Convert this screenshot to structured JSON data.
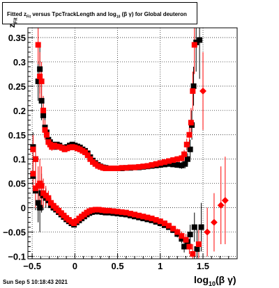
{
  "chart_data": {
    "type": "scatter",
    "title_prefix": "Fitted  z",
    "title_sub": "Fit",
    "title_mid": "  versus TpcTrackLength and log",
    "title_sub2": "10",
    "title_suffix": "(β γ) for Global deuteron",
    "xlabel_main": "log",
    "xlabel_sub": "10",
    "xlabel_tail": "(β γ)",
    "ylabel_main": "z",
    "ylabel_sub": "Fit",
    "footer": "Sun Sep  5 10:18:43 2021",
    "xlim": [
      -0.55,
      1.9
    ],
    "ylim": [
      -0.105,
      0.37
    ],
    "x_ticks": [
      -0.5,
      0,
      0.5,
      1,
      1.5
    ],
    "x_tick_labels": [
      "−0.5",
      "0",
      "0.5",
      "1",
      "1.5"
    ],
    "y_ticks": [
      -0.1,
      -0.05,
      0,
      0.05,
      0.1,
      0.15,
      0.2,
      0.25,
      0.3,
      0.35
    ],
    "y_tick_labels": [
      "−0.1",
      "−0.05",
      "0",
      "0.05",
      "0.1",
      "0.15",
      "0.2",
      "0.25",
      "0.3",
      "0.35"
    ],
    "grid": true,
    "colors": {
      "black_series": "#000000",
      "red_series": "#ff0000"
    },
    "series": [
      {
        "marker": "square",
        "color": "#000000",
        "points": [
          [
            -0.49,
            0.125,
            0.03
          ],
          [
            -0.46,
            0.1,
            0.03
          ],
          [
            -0.43,
            0.26,
            0.04
          ],
          [
            -0.41,
            0.285,
            0.05
          ],
          [
            -0.39,
            0.22,
            0.04
          ],
          [
            -0.37,
            0.19,
            0.03
          ],
          [
            -0.35,
            0.165,
            0.02
          ],
          [
            -0.33,
            0.155,
            0.015
          ],
          [
            -0.31,
            0.14,
            0.01
          ],
          [
            -0.29,
            0.135,
            0.01
          ],
          [
            -0.27,
            0.13,
            0.008
          ],
          [
            -0.24,
            0.125,
            0.006
          ],
          [
            -0.21,
            0.13,
            0.005
          ],
          [
            -0.18,
            0.128,
            0.005
          ],
          [
            -0.15,
            0.124,
            0.004
          ],
          [
            -0.12,
            0.122,
            0.004
          ],
          [
            -0.09,
            0.125,
            0.004
          ],
          [
            -0.06,
            0.128,
            0.004
          ],
          [
            -0.03,
            0.13,
            0.004
          ],
          [
            0.0,
            0.128,
            0.004
          ],
          [
            0.03,
            0.126,
            0.003
          ],
          [
            0.06,
            0.124,
            0.003
          ],
          [
            0.09,
            0.12,
            0.003
          ],
          [
            0.12,
            0.117,
            0.003
          ],
          [
            0.15,
            0.112,
            0.003
          ],
          [
            0.18,
            0.104,
            0.003
          ],
          [
            0.21,
            0.097,
            0.003
          ],
          [
            0.24,
            0.092,
            0.003
          ],
          [
            0.27,
            0.088,
            0.003
          ],
          [
            0.3,
            0.085,
            0.003
          ],
          [
            0.33,
            0.083,
            0.003
          ],
          [
            0.36,
            0.082,
            0.003
          ],
          [
            0.4,
            0.081,
            0.003
          ],
          [
            0.45,
            0.081,
            0.003
          ],
          [
            0.5,
            0.081,
            0.003
          ],
          [
            0.55,
            0.081,
            0.003
          ],
          [
            0.6,
            0.082,
            0.003
          ],
          [
            0.65,
            0.082,
            0.003
          ],
          [
            0.7,
            0.083,
            0.003
          ],
          [
            0.75,
            0.083,
            0.003
          ],
          [
            0.8,
            0.084,
            0.003
          ],
          [
            0.85,
            0.085,
            0.003
          ],
          [
            0.9,
            0.086,
            0.004
          ],
          [
            0.95,
            0.087,
            0.004
          ],
          [
            1.0,
            0.088,
            0.004
          ],
          [
            1.05,
            0.089,
            0.004
          ],
          [
            1.1,
            0.09,
            0.004
          ],
          [
            1.15,
            0.089,
            0.005
          ],
          [
            1.2,
            0.088,
            0.006
          ],
          [
            1.25,
            0.087,
            0.007
          ],
          [
            1.29,
            0.09,
            0.009
          ],
          [
            1.32,
            0.1,
            0.012
          ],
          [
            1.35,
            0.12,
            0.02
          ],
          [
            1.37,
            0.17,
            0.03
          ],
          [
            1.39,
            0.25,
            0.04
          ],
          [
            1.42,
            0.34,
            0.06
          ],
          [
            1.46,
            0.345,
            0.08
          ],
          [
            -0.49,
            0.065,
            0.03
          ],
          [
            -0.46,
            0.035,
            0.04
          ],
          [
            -0.43,
            0.01,
            0.04
          ],
          [
            -0.41,
            0.0,
            0.05
          ],
          [
            -0.39,
            0.03,
            0.04
          ],
          [
            -0.37,
            0.025,
            0.03
          ],
          [
            -0.34,
            0.02,
            0.02
          ],
          [
            -0.31,
            0.015,
            0.015
          ],
          [
            -0.28,
            0.005,
            0.01
          ],
          [
            -0.25,
            0.0,
            0.008
          ],
          [
            -0.22,
            -0.004,
            0.006
          ],
          [
            -0.19,
            -0.009,
            0.005
          ],
          [
            -0.16,
            -0.014,
            0.005
          ],
          [
            -0.13,
            -0.019,
            0.004
          ],
          [
            -0.1,
            -0.024,
            0.004
          ],
          [
            -0.07,
            -0.028,
            0.004
          ],
          [
            -0.04,
            -0.032,
            0.004
          ],
          [
            -0.01,
            -0.035,
            0.004
          ],
          [
            0.02,
            -0.03,
            0.003
          ],
          [
            0.05,
            -0.026,
            0.003
          ],
          [
            0.08,
            -0.022,
            0.003
          ],
          [
            0.11,
            -0.018,
            0.003
          ],
          [
            0.14,
            -0.014,
            0.003
          ],
          [
            0.17,
            -0.011,
            0.003
          ],
          [
            0.2,
            -0.009,
            0.003
          ],
          [
            0.24,
            -0.008,
            0.003
          ],
          [
            0.28,
            -0.008,
            0.003
          ],
          [
            0.32,
            -0.009,
            0.003
          ],
          [
            0.36,
            -0.01,
            0.003
          ],
          [
            0.4,
            -0.01,
            0.003
          ],
          [
            0.45,
            -0.011,
            0.003
          ],
          [
            0.5,
            -0.012,
            0.003
          ],
          [
            0.55,
            -0.013,
            0.003
          ],
          [
            0.6,
            -0.014,
            0.003
          ],
          [
            0.65,
            -0.016,
            0.003
          ],
          [
            0.7,
            -0.018,
            0.003
          ],
          [
            0.75,
            -0.02,
            0.003
          ],
          [
            0.8,
            -0.022,
            0.003
          ],
          [
            0.85,
            -0.024,
            0.004
          ],
          [
            0.9,
            -0.026,
            0.004
          ],
          [
            0.95,
            -0.029,
            0.004
          ],
          [
            1.0,
            -0.032,
            0.004
          ],
          [
            1.05,
            -0.036,
            0.005
          ],
          [
            1.1,
            -0.04,
            0.005
          ],
          [
            1.15,
            -0.046,
            0.006
          ],
          [
            1.2,
            -0.054,
            0.007
          ],
          [
            1.25,
            -0.064,
            0.009
          ],
          [
            1.28,
            -0.08,
            0.012
          ],
          [
            1.32,
            -0.07,
            0.015
          ],
          [
            1.35,
            -0.055,
            0.02
          ],
          [
            1.4,
            -0.04,
            0.03
          ],
          [
            1.43,
            -0.085,
            0.04
          ],
          [
            1.48,
            -0.04,
            0.05
          ]
        ]
      },
      {
        "marker": "square",
        "color": "#ff0000",
        "points": [
          [
            -0.49,
            0.12,
            0.03
          ],
          [
            -0.46,
            0.1,
            0.03
          ],
          [
            -0.43,
            0.335,
            0.04
          ],
          [
            -0.41,
            0.27,
            0.05
          ],
          [
            -0.39,
            0.26,
            0.04
          ],
          [
            -0.37,
            0.2,
            0.03
          ],
          [
            -0.35,
            0.16,
            0.02
          ],
          [
            -0.33,
            0.15,
            0.015
          ],
          [
            -0.31,
            0.135,
            0.01
          ],
          [
            -0.29,
            0.13,
            0.01
          ],
          [
            -0.27,
            0.125,
            0.008
          ],
          [
            -0.24,
            0.128,
            0.006
          ],
          [
            -0.21,
            0.126,
            0.005
          ],
          [
            -0.18,
            0.125,
            0.005
          ],
          [
            -0.15,
            0.123,
            0.004
          ],
          [
            -0.12,
            0.12,
            0.004
          ],
          [
            -0.09,
            0.122,
            0.004
          ],
          [
            -0.06,
            0.124,
            0.004
          ],
          [
            -0.03,
            0.125,
            0.004
          ],
          [
            0.0,
            0.124,
            0.004
          ],
          [
            0.03,
            0.122,
            0.003
          ],
          [
            0.06,
            0.12,
            0.003
          ],
          [
            0.09,
            0.117,
            0.003
          ],
          [
            0.12,
            0.114,
            0.003
          ],
          [
            0.15,
            0.108,
            0.003
          ],
          [
            0.18,
            0.1,
            0.003
          ],
          [
            0.21,
            0.094,
            0.003
          ],
          [
            0.24,
            0.09,
            0.003
          ],
          [
            0.27,
            0.086,
            0.003
          ],
          [
            0.3,
            0.084,
            0.003
          ],
          [
            0.33,
            0.082,
            0.003
          ],
          [
            0.36,
            0.081,
            0.003
          ],
          [
            0.4,
            0.081,
            0.003
          ],
          [
            0.45,
            0.081,
            0.003
          ],
          [
            0.5,
            0.081,
            0.003
          ],
          [
            0.55,
            0.082,
            0.003
          ],
          [
            0.6,
            0.082,
            0.003
          ],
          [
            0.65,
            0.083,
            0.003
          ],
          [
            0.7,
            0.083,
            0.003
          ],
          [
            0.75,
            0.084,
            0.003
          ],
          [
            0.8,
            0.085,
            0.003
          ],
          [
            0.85,
            0.086,
            0.003
          ],
          [
            0.9,
            0.088,
            0.004
          ],
          [
            0.95,
            0.09,
            0.004
          ],
          [
            1.0,
            0.092,
            0.004
          ],
          [
            1.05,
            0.094,
            0.004
          ],
          [
            1.1,
            0.096,
            0.004
          ],
          [
            1.15,
            0.098,
            0.005
          ],
          [
            1.2,
            0.1,
            0.006
          ],
          [
            1.25,
            0.102,
            0.007
          ],
          [
            1.28,
            0.11,
            0.009
          ],
          [
            1.31,
            0.13,
            0.012
          ],
          [
            1.34,
            0.15,
            0.02
          ],
          [
            1.36,
            0.175,
            0.03
          ],
          [
            1.38,
            0.24,
            0.04
          ],
          [
            1.4,
            0.335,
            0.06
          ],
          [
            1.5,
            0.24,
            0.08
          ],
          [
            -0.49,
            0.07,
            0.03
          ],
          [
            -0.46,
            0.04,
            0.04
          ],
          [
            -0.43,
            0.045,
            0.04
          ],
          [
            -0.41,
            0.05,
            0.05
          ],
          [
            -0.39,
            0.045,
            0.04
          ],
          [
            -0.37,
            0.03,
            0.03
          ],
          [
            -0.34,
            0.025,
            0.02
          ],
          [
            -0.31,
            0.02,
            0.015
          ],
          [
            -0.28,
            0.01,
            0.01
          ],
          [
            -0.25,
            0.004,
            0.008
          ],
          [
            -0.22,
            -0.001,
            0.006
          ],
          [
            -0.19,
            -0.006,
            0.005
          ],
          [
            -0.16,
            -0.011,
            0.005
          ],
          [
            -0.13,
            -0.016,
            0.004
          ],
          [
            -0.1,
            -0.021,
            0.004
          ],
          [
            -0.07,
            -0.025,
            0.004
          ],
          [
            -0.04,
            -0.029,
            0.004
          ],
          [
            -0.01,
            -0.032,
            0.004
          ],
          [
            0.02,
            -0.027,
            0.003
          ],
          [
            0.05,
            -0.022,
            0.003
          ],
          [
            0.08,
            -0.018,
            0.003
          ],
          [
            0.11,
            -0.014,
            0.003
          ],
          [
            0.14,
            -0.01,
            0.003
          ],
          [
            0.17,
            -0.007,
            0.003
          ],
          [
            0.2,
            -0.005,
            0.003
          ],
          [
            0.24,
            -0.004,
            0.003
          ],
          [
            0.28,
            -0.004,
            0.003
          ],
          [
            0.32,
            -0.005,
            0.003
          ],
          [
            0.36,
            -0.006,
            0.003
          ],
          [
            0.4,
            -0.006,
            0.003
          ],
          [
            0.45,
            -0.007,
            0.003
          ],
          [
            0.5,
            -0.008,
            0.003
          ],
          [
            0.55,
            -0.009,
            0.003
          ],
          [
            0.6,
            -0.01,
            0.003
          ],
          [
            0.65,
            -0.012,
            0.003
          ],
          [
            0.7,
            -0.014,
            0.003
          ],
          [
            0.75,
            -0.016,
            0.003
          ],
          [
            0.8,
            -0.018,
            0.003
          ],
          [
            0.85,
            -0.02,
            0.004
          ],
          [
            0.9,
            -0.022,
            0.004
          ],
          [
            0.95,
            -0.025,
            0.004
          ],
          [
            1.0,
            -0.028,
            0.004
          ],
          [
            1.05,
            -0.032,
            0.005
          ],
          [
            1.1,
            -0.037,
            0.005
          ],
          [
            1.15,
            -0.043,
            0.006
          ],
          [
            1.2,
            -0.05,
            0.007
          ],
          [
            1.25,
            -0.058,
            0.009
          ],
          [
            1.3,
            -0.066,
            0.012
          ],
          [
            1.34,
            -0.08,
            0.015
          ],
          [
            1.38,
            -0.095,
            0.02
          ],
          [
            1.45,
            -0.075,
            0.03
          ],
          [
            1.55,
            -0.05,
            0.05
          ],
          [
            1.63,
            -0.03,
            0.06
          ],
          [
            1.71,
            0.005,
            0.08
          ],
          [
            1.76,
            0.015,
            0.09
          ]
        ]
      }
    ]
  }
}
